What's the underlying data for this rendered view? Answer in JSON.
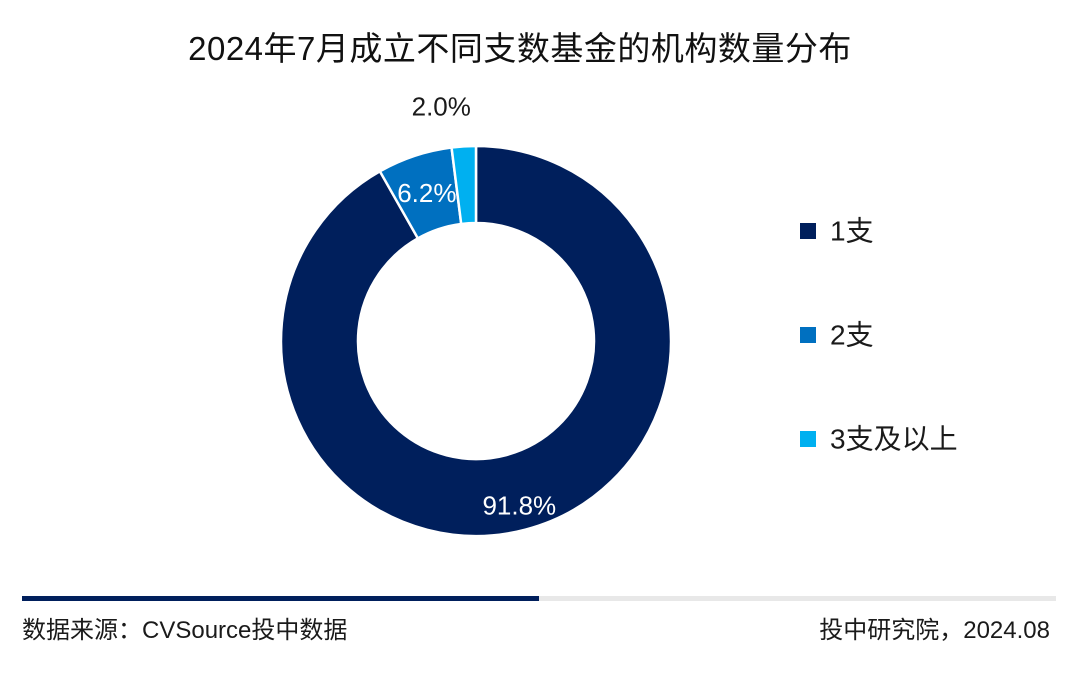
{
  "chart_data": {
    "type": "pie",
    "title": "2024年7月成立不同支数基金的机构数量分布",
    "categories": [
      "1支",
      "2支",
      "3支及以上"
    ],
    "values": [
      91.8,
      6.2,
      2.0
    ],
    "value_labels": [
      "91.8%",
      "6.2%",
      "2.0%"
    ],
    "colors": [
      "#001f5c",
      "#0070c0",
      "#00b0f0"
    ],
    "donut": true,
    "legend_position": "right"
  },
  "footer": {
    "source": "数据来源：CVSource投中数据",
    "credit": "投中研究院，2024.08"
  }
}
